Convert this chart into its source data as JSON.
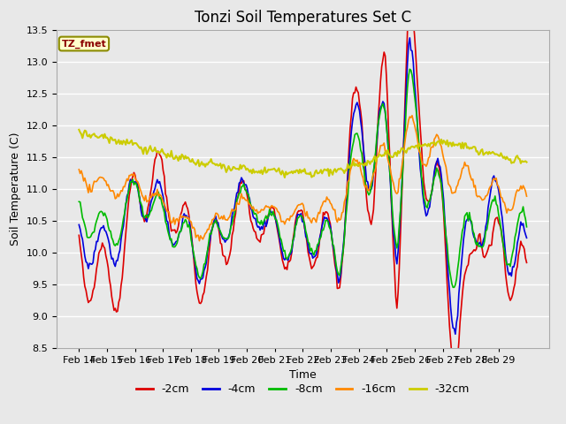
{
  "title": "Tonzi Soil Temperatures Set C",
  "xlabel": "Time",
  "ylabel": "Soil Temperature (C)",
  "ylim": [
    8.5,
    13.5
  ],
  "annotation": "TZ_fmet",
  "x_labels": [
    "Feb 14",
    "Feb 15",
    "Feb 16",
    "Feb 17",
    "Feb 18",
    "Feb 19",
    "Feb 20",
    "Feb 21",
    "Feb 22",
    "Feb 23",
    "Feb 24",
    "Feb 25",
    "Feb 26",
    "Feb 27",
    "Feb 28",
    "Feb 29"
  ],
  "background_color": "#e8e8e8",
  "plot_bg_color": "#e8e8e8",
  "grid_color": "#ffffff",
  "title_fontsize": 12,
  "label_fontsize": 9,
  "tick_fontsize": 8,
  "legend_entries": [
    "-2cm",
    "-4cm",
    "-8cm",
    "-16cm",
    "-32cm"
  ],
  "legend_colors": [
    "#dd0000",
    "#0000dd",
    "#00bb00",
    "#ff8800",
    "#cccc00"
  ],
  "n_days": 16,
  "pts_per_day": 24,
  "series_params": {
    "-2cm": {
      "color": "#dd0000",
      "linewidth": 1.2,
      "base_trend": [
        9.9,
        9.8,
        9.5,
        9.6,
        10.0,
        11.1,
        11.1,
        11.0,
        10.9,
        10.2,
        9.8,
        9.8,
        10.0,
        10.7,
        10.5,
        10.8,
        10.1,
        10.4,
        10.0,
        10.3,
        10.3,
        10.0,
        10.0,
        11.5,
        12.1,
        11.0,
        12.45,
        10.0,
        13.05,
        12.5,
        10.8,
        10.2,
        8.65,
        9.0,
        11.1,
        9.5,
        10.4,
        9.55,
        9.5
      ],
      "amplitude": [
        0.6,
        0.6,
        0.6,
        0.6,
        0.65,
        0.65,
        0.55,
        0.55,
        0.55,
        0.6,
        0.6,
        0.6,
        0.6,
        0.6,
        0.6,
        0.5,
        0.5,
        0.5,
        0.45,
        0.5,
        0.55,
        0.6,
        0.7,
        0.8,
        0.85,
        0.9,
        0.9,
        0.95,
        1.0,
        0.95,
        0.9,
        0.85,
        0.8,
        0.8,
        0.75,
        0.75,
        0.7,
        0.65,
        0.6
      ]
    },
    "-4cm": {
      "color": "#0000dd",
      "linewidth": 1.2,
      "base_trend": [
        10.25,
        10.1,
        10.05,
        10.1,
        10.55,
        11.0,
        10.85,
        10.7,
        10.5,
        10.2,
        9.9,
        10.0,
        10.2,
        10.85,
        10.75,
        10.9,
        10.2,
        10.4,
        10.05,
        10.3,
        10.3,
        10.1,
        10.0,
        11.3,
        12.0,
        11.55,
        11.65,
        10.6,
        12.55,
        11.8,
        10.85,
        10.5,
        9.25,
        9.85,
        10.8,
        10.5,
        10.65,
        9.9,
        9.85
      ],
      "amplitude": [
        0.35,
        0.35,
        0.35,
        0.35,
        0.4,
        0.4,
        0.38,
        0.38,
        0.38,
        0.4,
        0.4,
        0.4,
        0.4,
        0.4,
        0.4,
        0.38,
        0.38,
        0.38,
        0.35,
        0.38,
        0.4,
        0.45,
        0.55,
        0.65,
        0.7,
        0.75,
        0.75,
        0.8,
        0.85,
        0.82,
        0.78,
        0.74,
        0.7,
        0.7,
        0.65,
        0.65,
        0.62,
        0.58,
        0.55
      ]
    },
    "-8cm": {
      "color": "#00bb00",
      "linewidth": 1.2,
      "base_trend": [
        10.65,
        10.5,
        10.35,
        10.35,
        10.6,
        11.0,
        10.75,
        10.55,
        10.4,
        10.2,
        9.9,
        10.05,
        10.2,
        10.7,
        10.7,
        10.9,
        10.3,
        10.45,
        10.05,
        10.35,
        10.3,
        10.1,
        10.05,
        11.05,
        11.55,
        11.55,
        11.7,
        10.7,
        12.15,
        11.9,
        10.85,
        10.4,
        9.95,
        10.0,
        10.65,
        10.3,
        10.3,
        10.25,
        10.2
      ],
      "amplitude": [
        0.28,
        0.28,
        0.28,
        0.28,
        0.32,
        0.32,
        0.3,
        0.3,
        0.3,
        0.32,
        0.32,
        0.32,
        0.32,
        0.32,
        0.32,
        0.3,
        0.3,
        0.3,
        0.28,
        0.3,
        0.32,
        0.38,
        0.48,
        0.55,
        0.6,
        0.65,
        0.65,
        0.7,
        0.75,
        0.72,
        0.68,
        0.64,
        0.6,
        0.6,
        0.55,
        0.55,
        0.52,
        0.48,
        0.45
      ]
    },
    "-16cm": {
      "color": "#ff8800",
      "linewidth": 1.2,
      "base_trend": [
        11.25,
        11.1,
        11.05,
        11.0,
        11.05,
        11.1,
        10.9,
        10.75,
        10.6,
        10.45,
        10.35,
        10.35,
        10.5,
        10.75,
        10.7,
        10.8,
        10.6,
        10.65,
        10.55,
        10.65,
        10.65,
        10.65,
        10.7,
        11.1,
        11.25,
        11.35,
        11.35,
        11.3,
        11.75,
        11.75,
        11.6,
        11.35,
        11.2,
        11.05,
        11.1,
        10.85,
        10.9,
        10.85,
        10.8
      ],
      "amplitude": [
        0.12,
        0.12,
        0.12,
        0.12,
        0.14,
        0.14,
        0.13,
        0.13,
        0.13,
        0.14,
        0.14,
        0.14,
        0.14,
        0.14,
        0.14,
        0.13,
        0.13,
        0.13,
        0.12,
        0.13,
        0.14,
        0.18,
        0.24,
        0.28,
        0.3,
        0.32,
        0.32,
        0.35,
        0.38,
        0.36,
        0.34,
        0.32,
        0.3,
        0.3,
        0.28,
        0.28,
        0.26,
        0.24,
        0.22
      ]
    },
    "-32cm": {
      "color": "#cccc00",
      "linewidth": 1.5,
      "base_trend": [
        11.9,
        11.85,
        11.8,
        11.78,
        11.73,
        11.68,
        11.62,
        11.56,
        11.51,
        11.46,
        11.41,
        11.38,
        11.35,
        11.33,
        11.3,
        11.28,
        11.27,
        11.27,
        11.25,
        11.25,
        11.25,
        11.26,
        11.28,
        11.33,
        11.4,
        11.47,
        11.53,
        11.58,
        11.63,
        11.68,
        11.72,
        11.72,
        11.7,
        11.65,
        11.6,
        11.55,
        11.5,
        11.45,
        11.42
      ],
      "amplitude": [
        0.02,
        0.02,
        0.02,
        0.02,
        0.02,
        0.02,
        0.02,
        0.02,
        0.02,
        0.02,
        0.02,
        0.02,
        0.02,
        0.02,
        0.02,
        0.02,
        0.02,
        0.02,
        0.02,
        0.02,
        0.02,
        0.02,
        0.02,
        0.02,
        0.02,
        0.02,
        0.02,
        0.02,
        0.02,
        0.02,
        0.02,
        0.02,
        0.02,
        0.02,
        0.02,
        0.02,
        0.02,
        0.02,
        0.02
      ]
    }
  }
}
